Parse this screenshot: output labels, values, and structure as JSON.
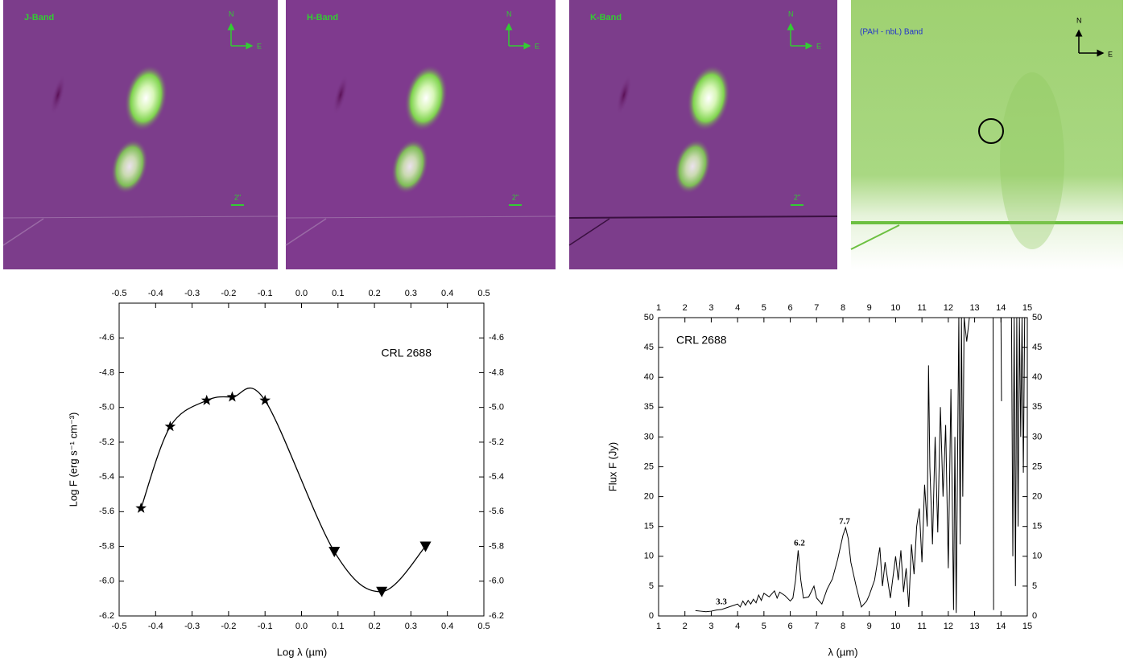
{
  "images": [
    {
      "label": "J-Band",
      "north": "N",
      "east": "E",
      "scale": "2\""
    },
    {
      "label": "H-Band",
      "north": "N",
      "east": "E",
      "scale": "2\""
    },
    {
      "label": "K-Band",
      "north": "N",
      "east": "E",
      "scale": "2\""
    },
    {
      "label": "(PAH - nbL) Band",
      "north": "N",
      "east": "E"
    }
  ],
  "chart_data": [
    {
      "type": "scatter",
      "annotation": "CRL 2688",
      "xlabel": "Log λ (µm)",
      "ylabel": "Log F (erg s⁻¹ cm⁻³)",
      "xlim": [
        -0.5,
        0.5
      ],
      "xticks": [
        -0.5,
        -0.4,
        -0.3,
        -0.2,
        -0.1,
        {
          "value": 0,
          "label": "0.0"
        },
        0.1,
        0.2,
        0.3,
        0.4,
        0.5
      ],
      "ylim": [
        -6.2,
        -4.4
      ],
      "yticks": [
        -6.2,
        {
          "value": -6,
          "label": "-6.0"
        },
        -5.8,
        -5.6,
        -5.4,
        -5.2,
        {
          "value": -5,
          "label": "-5.0"
        },
        -4.8,
        -4.6
      ],
      "mirror_axes": true,
      "fit_line": true,
      "series": [
        {
          "marker": "star",
          "color": "#000000",
          "x": [
            -0.44,
            -0.36,
            -0.26,
            -0.19,
            -0.1
          ],
          "values": [
            -5.58,
            -5.11,
            -4.96,
            -4.94,
            -4.96
          ]
        },
        {
          "marker": "triangle-down",
          "color": "#000000",
          "x": [
            0.09,
            0.22,
            0.34
          ],
          "values": [
            -5.83,
            -6.06,
            -5.8
          ]
        }
      ]
    },
    {
      "type": "line",
      "annotation": "CRL 2688",
      "xlabel": "λ (µm)",
      "ylabel": "Flux F (Jy)",
      "xlim": [
        1,
        15
      ],
      "xticks": [
        1,
        2,
        3,
        4,
        5,
        6,
        7,
        8,
        9,
        10,
        11,
        12,
        13,
        14,
        15
      ],
      "ylim": [
        0,
        50
      ],
      "yticks": [
        0,
        5,
        10,
        15,
        20,
        25,
        30,
        35,
        40,
        45,
        50
      ],
      "mirror_axes": true,
      "feature_labels": [
        "3.3",
        "6.2",
        "7.7"
      ],
      "series": [
        {
          "color": "#000000",
          "x": [
            2.4,
            2.6,
            2.8,
            3,
            3.2,
            3.4,
            3.6,
            3.8,
            4,
            4.1,
            4.2,
            4.3,
            4.4,
            4.5,
            4.6,
            4.7,
            4.8,
            4.9,
            5,
            5.2,
            5.4,
            5.5,
            5.6,
            5.8,
            6,
            6.1,
            6.2,
            6.3,
            6.4,
            6.5,
            6.7,
            6.9,
            7,
            7.2,
            7.4,
            7.6,
            7.8,
            8,
            8.1,
            8.2,
            8.3,
            8.5,
            8.7,
            8.9,
            9,
            9.2,
            9.4,
            9.5,
            9.6,
            9.8,
            10,
            10.1,
            10.2,
            10.3,
            10.4,
            10.5,
            10.6,
            10.7,
            10.8,
            10.9,
            11,
            11.1,
            11.2,
            11.25,
            11.3,
            11.4,
            11.5,
            11.6,
            11.7,
            11.8,
            11.9,
            12,
            12.1,
            12.2,
            12.25,
            12.3,
            12.4,
            12.45,
            12.5,
            12.55,
            12.6,
            12.7,
            12.8,
            13,
            13.7,
            13.72,
            13.8,
            14,
            14.02,
            14.1,
            14.4,
            14.45,
            14.5,
            14.55,
            14.6,
            14.65,
            14.7,
            14.75,
            14.8,
            14.85,
            14.9
          ],
          "values": [
            0.9,
            0.8,
            0.7,
            0.8,
            1.0,
            1.1,
            1.4,
            1.7,
            2.0,
            1.5,
            2.5,
            1.8,
            2.6,
            2.0,
            2.8,
            2.2,
            3.5,
            2.6,
            3.8,
            3.2,
            4.2,
            3.0,
            4.0,
            3.4,
            2.5,
            3.0,
            6,
            11,
            6,
            3.0,
            3.2,
            5.0,
            3.0,
            2.0,
            4.5,
            6.2,
            9.5,
            13.5,
            14.8,
            13,
            9,
            5,
            1.5,
            2.5,
            3.5,
            6,
            11.5,
            5,
            9,
            3,
            10,
            6,
            11,
            4,
            8,
            1.5,
            12,
            7,
            15,
            18,
            9,
            22,
            15,
            42,
            25,
            12,
            30,
            14,
            35,
            20,
            32,
            8,
            38,
            1,
            30,
            0.5,
            50,
            12,
            50,
            20,
            50,
            46,
            50,
            null,
            50,
            1,
            null,
            50,
            36,
            null,
            50,
            10,
            50,
            5,
            50,
            15,
            50,
            30,
            50,
            24,
            50
          ]
        }
      ]
    }
  ]
}
